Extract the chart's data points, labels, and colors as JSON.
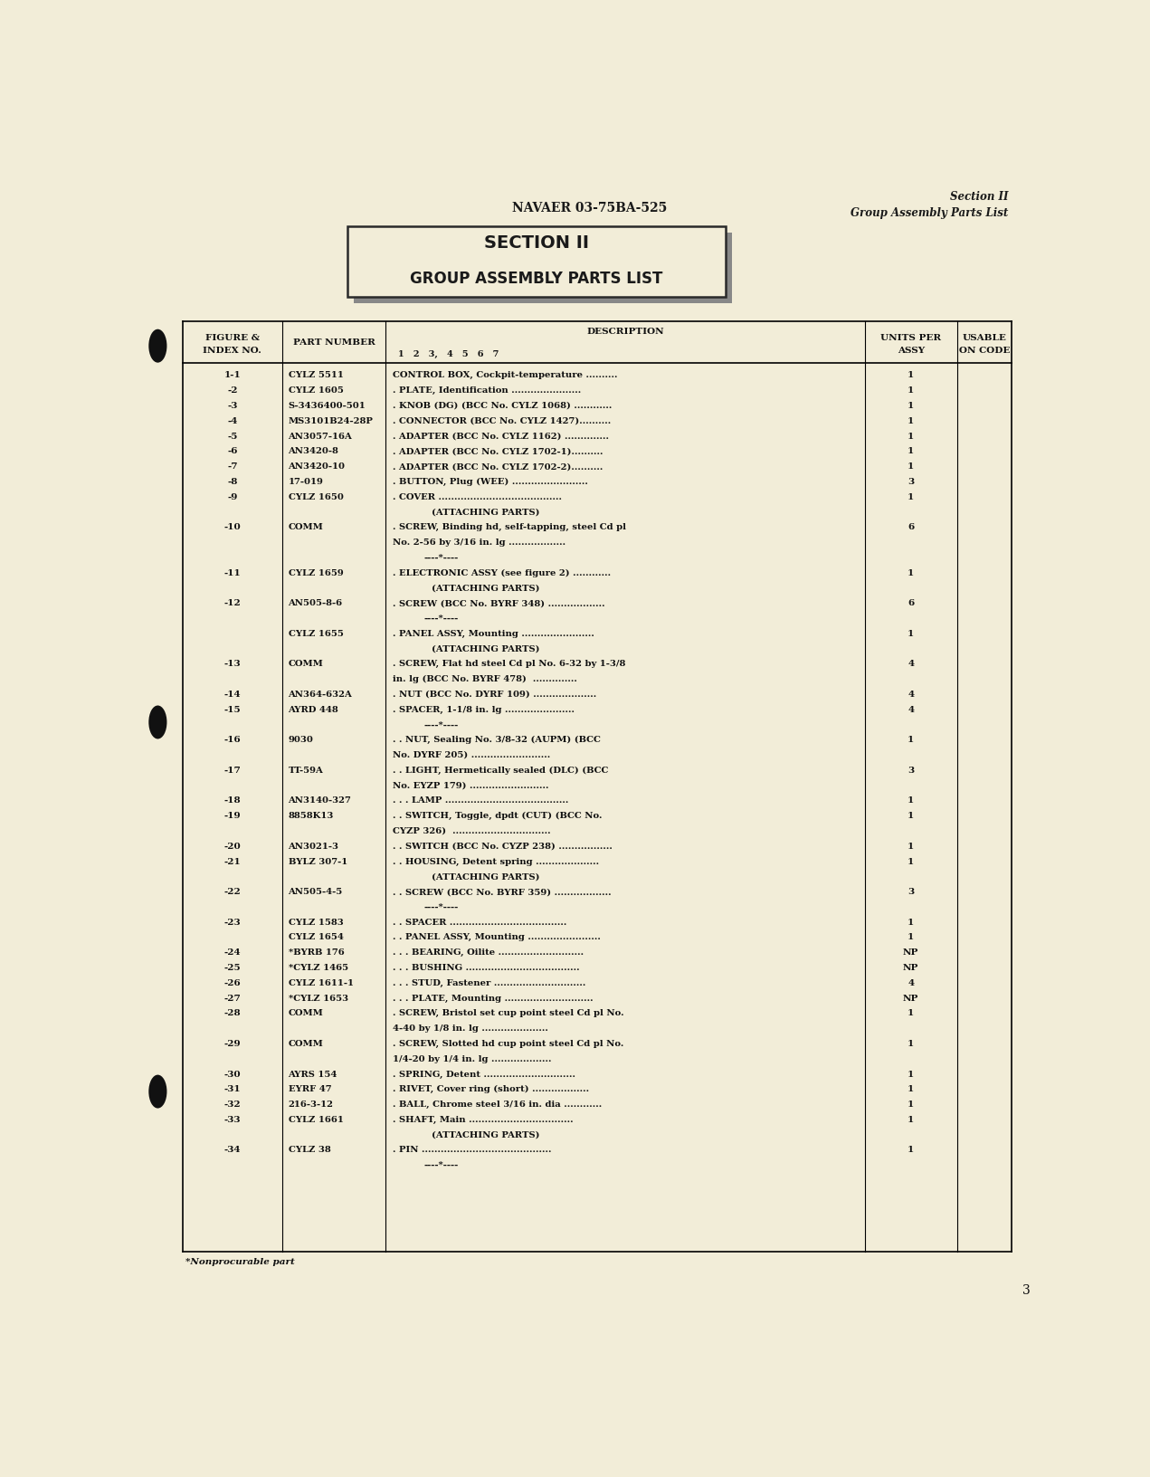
{
  "bg_color": "#f2edd8",
  "header_center": "NAVAER 03-75BA-525",
  "header_right_line1": "Section II",
  "header_right_line2": "Group Assembly Parts List",
  "section_title_line1": "SECTION II",
  "section_title_line2": "GROUP ASSEMBLY PARTS LIST",
  "table_rows": [
    {
      "fig": "1-1",
      "part": "CYLZ 5511",
      "indent": 0,
      "desc": "CONTROL BOX, Cockpit-temperature ..........",
      "units": "1"
    },
    {
      "fig": "-2",
      "part": "CYLZ 1605",
      "indent": 1,
      "desc": ". PLATE, Identification ......................",
      "units": "1"
    },
    {
      "fig": "-3",
      "part": "S-3436400-501",
      "indent": 1,
      "desc": ". KNOB (DG) (BCC No. CYLZ 1068) ............",
      "units": "1"
    },
    {
      "fig": "-4",
      "part": "MS3101B24-28P",
      "indent": 1,
      "desc": ". CONNECTOR (BCC No. CYLZ 1427)..........",
      "units": "1"
    },
    {
      "fig": "-5",
      "part": "AN3057-16A",
      "indent": 1,
      "desc": ". ADAPTER (BCC No. CYLZ 1162) ..............",
      "units": "1"
    },
    {
      "fig": "-6",
      "part": "AN3420-8",
      "indent": 1,
      "desc": ". ADAPTER (BCC No. CYLZ 1702-1)..........",
      "units": "1"
    },
    {
      "fig": "-7",
      "part": "AN3420-10",
      "indent": 1,
      "desc": ". ADAPTER (BCC No. CYLZ 1702-2)..........",
      "units": "1"
    },
    {
      "fig": "-8",
      "part": "17-019",
      "indent": 1,
      "desc": ". BUTTON, Plug (WEE) ........................",
      "units": "3"
    },
    {
      "fig": "-9",
      "part": "CYLZ 1650",
      "indent": 1,
      "desc": ". COVER .......................................",
      "units": "1"
    },
    {
      "fig": "",
      "part": "",
      "indent": 2,
      "desc": "(ATTACHING PARTS)",
      "units": ""
    },
    {
      "fig": "-10",
      "part": "COMM",
      "indent": 1,
      "desc": ". SCREW, Binding hd, self-tapping, steel Cd pl",
      "units": "6"
    },
    {
      "fig": "",
      "part": "",
      "indent": 2,
      "desc": "No. 2-56 by 3/16 in. lg ..................",
      "units": ""
    },
    {
      "fig": "",
      "part": "",
      "indent": 2,
      "desc": "----*----",
      "units": ""
    },
    {
      "fig": "-11",
      "part": "CYLZ 1659",
      "indent": 1,
      "desc": ". ELECTRONIC ASSY (see figure 2) ............",
      "units": "1"
    },
    {
      "fig": "",
      "part": "",
      "indent": 2,
      "desc": "(ATTACHING PARTS)",
      "units": ""
    },
    {
      "fig": "-12",
      "part": "AN505-8-6",
      "indent": 1,
      "desc": ". SCREW (BCC No. BYRF 348) ..................",
      "units": "6"
    },
    {
      "fig": "",
      "part": "",
      "indent": 2,
      "desc": "----*----",
      "units": ""
    },
    {
      "fig": "",
      "part": "CYLZ 1655",
      "indent": 1,
      "desc": ". PANEL ASSY, Mounting .......................",
      "units": "1"
    },
    {
      "fig": "",
      "part": "",
      "indent": 2,
      "desc": "(ATTACHING PARTS)",
      "units": ""
    },
    {
      "fig": "-13",
      "part": "COMM",
      "indent": 1,
      "desc": ". SCREW, Flat hd steel Cd pl No. 6-32 by 1-3/8",
      "units": "4"
    },
    {
      "fig": "",
      "part": "",
      "indent": 2,
      "desc": "in. lg (BCC No. BYRF 478)  ..............",
      "units": ""
    },
    {
      "fig": "-14",
      "part": "AN364-632A",
      "indent": 1,
      "desc": ". NUT (BCC No. DYRF 109) ....................",
      "units": "4"
    },
    {
      "fig": "-15",
      "part": "AYRD 448",
      "indent": 1,
      "desc": ". SPACER, 1-1/8 in. lg ......................",
      "units": "4"
    },
    {
      "fig": "",
      "part": "",
      "indent": 2,
      "desc": "----*----",
      "units": ""
    },
    {
      "fig": "-16",
      "part": "9030",
      "indent": 1,
      "desc": ". . NUT, Sealing No. 3/8-32 (AUPM) (BCC",
      "units": "1"
    },
    {
      "fig": "",
      "part": "",
      "indent": 2,
      "desc": "No. DYRF 205) .........................",
      "units": ""
    },
    {
      "fig": "-17",
      "part": "TT-59A",
      "indent": 1,
      "desc": ". . LIGHT, Hermetically sealed (DLC) (BCC",
      "units": "3"
    },
    {
      "fig": "",
      "part": "",
      "indent": 2,
      "desc": "No. EYZP 179) .........................",
      "units": ""
    },
    {
      "fig": "-18",
      "part": "AN3140-327",
      "indent": 1,
      "desc": ". . . LAMP .......................................",
      "units": "1"
    },
    {
      "fig": "-19",
      "part": "8858K13",
      "indent": 1,
      "desc": ". . SWITCH, Toggle, dpdt (CUT) (BCC No.",
      "units": "1"
    },
    {
      "fig": "",
      "part": "",
      "indent": 2,
      "desc": "CYZP 326)  ...............................",
      "units": ""
    },
    {
      "fig": "-20",
      "part": "AN3021-3",
      "indent": 1,
      "desc": ". . SWITCH (BCC No. CYZP 238) .................",
      "units": "1"
    },
    {
      "fig": "-21",
      "part": "BYLZ 307-1",
      "indent": 1,
      "desc": ". . HOUSING, Detent spring ....................",
      "units": "1"
    },
    {
      "fig": "",
      "part": "",
      "indent": 2,
      "desc": "(ATTACHING PARTS)",
      "units": ""
    },
    {
      "fig": "-22",
      "part": "AN505-4-5",
      "indent": 1,
      "desc": ". . SCREW (BCC No. BYRF 359) ..................",
      "units": "3"
    },
    {
      "fig": "",
      "part": "",
      "indent": 2,
      "desc": "----*----",
      "units": ""
    },
    {
      "fig": "-23",
      "part": "CYLZ 1583",
      "indent": 1,
      "desc": ". . SPACER .....................................",
      "units": "1"
    },
    {
      "fig": "",
      "part": "CYLZ 1654",
      "indent": 1,
      "desc": ". . PANEL ASSY, Mounting .......................",
      "units": "1"
    },
    {
      "fig": "-24",
      "part": "*BYRB 176",
      "indent": 1,
      "desc": ". . . BEARING, Oilite ...........................",
      "units": "NP"
    },
    {
      "fig": "-25",
      "part": "*CYLZ 1465",
      "indent": 1,
      "desc": ". . . BUSHING ....................................",
      "units": "NP"
    },
    {
      "fig": "-26",
      "part": "CYLZ 1611-1",
      "indent": 1,
      "desc": ". . . STUD, Fastener .............................",
      "units": "4"
    },
    {
      "fig": "-27",
      "part": "*CYLZ 1653",
      "indent": 1,
      "desc": ". . . PLATE, Mounting ............................",
      "units": "NP"
    },
    {
      "fig": "-28",
      "part": "COMM",
      "indent": 1,
      "desc": ". SCREW, Bristol set cup point steel Cd pl No.",
      "units": "1"
    },
    {
      "fig": "",
      "part": "",
      "indent": 2,
      "desc": "4-40 by 1/8 in. lg .....................",
      "units": ""
    },
    {
      "fig": "-29",
      "part": "COMM",
      "indent": 1,
      "desc": ". SCREW, Slotted hd cup point steel Cd pl No.",
      "units": "1"
    },
    {
      "fig": "",
      "part": "",
      "indent": 2,
      "desc": "1/4-20 by 1/4 in. lg ...................",
      "units": ""
    },
    {
      "fig": "-30",
      "part": "AYRS 154",
      "indent": 1,
      "desc": ". SPRING, Detent .............................",
      "units": "1"
    },
    {
      "fig": "-31",
      "part": "EYRF 47",
      "indent": 1,
      "desc": ". RIVET, Cover ring (short) ..................",
      "units": "1"
    },
    {
      "fig": "-32",
      "part": "216-3-12",
      "indent": 1,
      "desc": ". BALL, Chrome steel 3/16 in. dia ............",
      "units": "1"
    },
    {
      "fig": "-33",
      "part": "CYLZ 1661",
      "indent": 1,
      "desc": ". SHAFT, Main .................................",
      "units": "1"
    },
    {
      "fig": "",
      "part": "",
      "indent": 2,
      "desc": "(ATTACHING PARTS)",
      "units": ""
    },
    {
      "fig": "-34",
      "part": "CYLZ 38",
      "indent": 1,
      "desc": ". PIN .........................................",
      "units": "1"
    },
    {
      "fig": "",
      "part": "",
      "indent": 2,
      "desc": "----*----",
      "units": ""
    }
  ],
  "footer_note": "*Nonprocurable part",
  "page_number": "3"
}
